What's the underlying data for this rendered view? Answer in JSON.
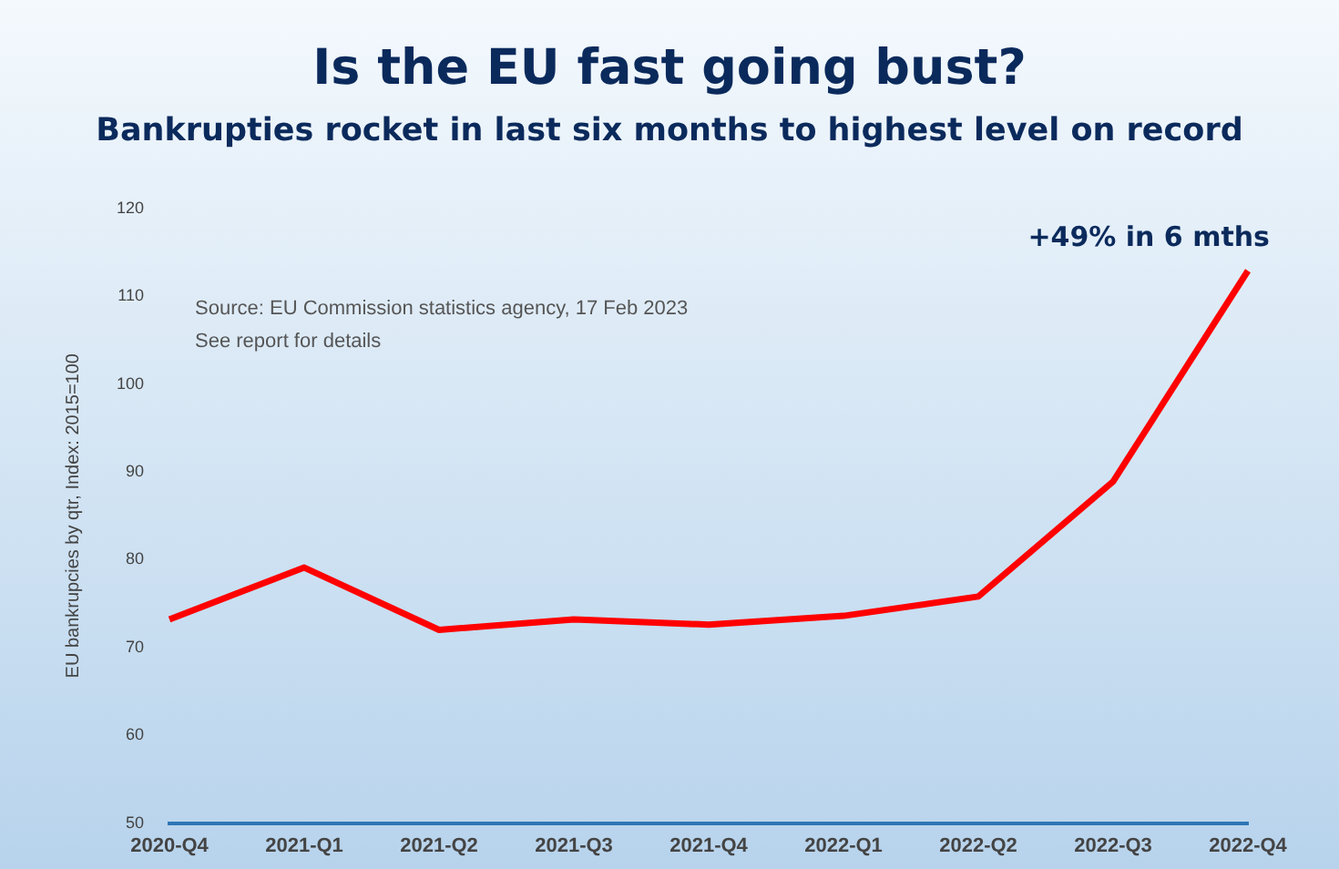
{
  "chart_data": {
    "type": "line",
    "title": "Is the EU fast going bust?",
    "subtitle": "Bankrupties rocket in last six months to highest level on record",
    "ylabel": "EU bankrupcies by qtr, Index: 2015=100",
    "categories": [
      "2020-Q4",
      "2021-Q1",
      "2021-Q2",
      "2021-Q3",
      "2021-Q4",
      "2022-Q1",
      "2022-Q2",
      "2022-Q3",
      "2022-Q4"
    ],
    "series": [
      {
        "color": "#ff0000",
        "values": [
          73.2,
          79.1,
          72.0,
          73.2,
          72.6,
          73.6,
          75.8,
          88.9,
          112.9
        ]
      }
    ],
    "ylim": [
      50,
      120
    ],
    "yticks": [
      50,
      60,
      70,
      80,
      90,
      100,
      110,
      120
    ],
    "grid": false,
    "legend": false,
    "marker": "none",
    "line_style": "solid",
    "annotations": [
      {
        "text": "+49% in 6 mths",
        "x": "2022-Q4",
        "y": 112.9
      },
      "Source: EU Commission statistics agency, 17 Feb 2023",
      "See report for details"
    ]
  }
}
